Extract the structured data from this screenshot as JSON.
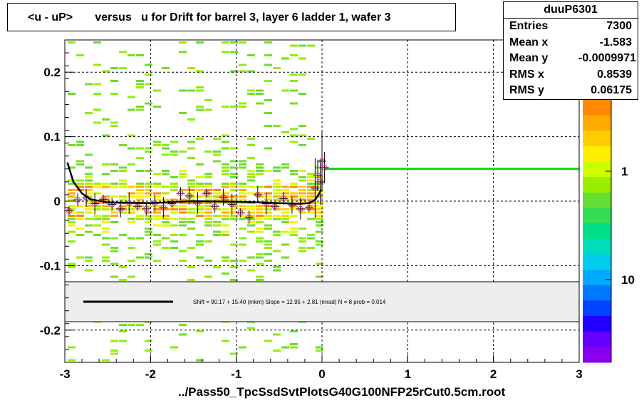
{
  "title": "<u - uP>       versus   u for Drift for barrel 3, layer 6 ladder 1, wafer 3",
  "stats": {
    "name": "duuP6301",
    "rows": [
      {
        "label": "Entries",
        "value": "7300"
      },
      {
        "label": "Mean x",
        "value": "-1.583"
      },
      {
        "label": "Mean y",
        "value": "-0.0009971"
      },
      {
        "label": "RMS x",
        "value": "0.8539"
      },
      {
        "label": "RMS y",
        "value": "0.06175"
      }
    ]
  },
  "xlabel": "../Pass50_TpcSsdSvtPlotsG40G100NFP25rCut0.5cm.root",
  "fit_text": "Shift =    90.17 + 15.40 (mkm) Slope =    12.95 + 2.81 (mrad)  N = 8 prob = 0.014",
  "colors": {
    "fit_curve": "#000000",
    "right_line": "#00dd00",
    "points": "#cc3399",
    "palette": [
      "#ff8800",
      "#ffaa00",
      "#ffcc00",
      "#ffee00",
      "#ccff00",
      "#99ee00",
      "#66dd33",
      "#33dd55",
      "#00dd88",
      "#00ddbb",
      "#00ccee",
      "#00aaff",
      "#0077ff",
      "#0044ff",
      "#2200ff",
      "#6600ff",
      "#8800ee"
    ]
  },
  "chart_data": {
    "type": "heatmap",
    "xlim": [
      -3,
      3
    ],
    "ylim": [
      -0.25,
      0.25
    ],
    "x_ticks": [
      "-3",
      "-2",
      "-1",
      "0",
      "1",
      "2",
      "3"
    ],
    "y_ticks": [
      "0.2",
      "0.1",
      "0",
      "-0.1",
      "-0.2"
    ],
    "z_ticks": [
      "1",
      "10"
    ],
    "grid": true,
    "stats_placement": "top-right",
    "profile_points": [
      {
        "x": -2.95,
        "y": -0.015
      },
      {
        "x": -2.85,
        "y": 0.002
      },
      {
        "x": -2.75,
        "y": 0.005
      },
      {
        "x": -2.65,
        "y": -0.004
      },
      {
        "x": -2.55,
        "y": 0.003
      },
      {
        "x": -2.45,
        "y": -0.005
      },
      {
        "x": -2.35,
        "y": -0.012
      },
      {
        "x": -2.25,
        "y": -0.003
      },
      {
        "x": -2.15,
        "y": -0.008
      },
      {
        "x": -2.05,
        "y": -0.012
      },
      {
        "x": -1.95,
        "y": -0.003
      },
      {
        "x": -1.85,
        "y": -0.01
      },
      {
        "x": -1.75,
        "y": -0.004
      },
      {
        "x": -1.65,
        "y": 0.012
      },
      {
        "x": -1.55,
        "y": 0.008
      },
      {
        "x": -1.45,
        "y": -0.003
      },
      {
        "x": -1.35,
        "y": 0.012
      },
      {
        "x": -1.25,
        "y": -0.008
      },
      {
        "x": -1.15,
        "y": 0.006
      },
      {
        "x": -1.05,
        "y": -0.005
      },
      {
        "x": -0.95,
        "y": -0.018
      },
      {
        "x": -0.85,
        "y": -0.025
      },
      {
        "x": -0.75,
        "y": 0.01
      },
      {
        "x": -0.65,
        "y": -0.004
      },
      {
        "x": -0.55,
        "y": -0.008
      },
      {
        "x": -0.45,
        "y": 0.004
      },
      {
        "x": -0.35,
        "y": -0.006
      },
      {
        "x": -0.25,
        "y": -0.012
      },
      {
        "x": -0.15,
        "y": -0.01
      },
      {
        "x": -0.08,
        "y": 0.02
      },
      {
        "x": -0.05,
        "y": 0.04
      },
      {
        "x": -0.02,
        "y": 0.03
      },
      {
        "x": 0.0,
        "y": 0.062
      },
      {
        "x": 0.03,
        "y": 0.052
      }
    ],
    "fit_curve": [
      {
        "x": -2.97,
        "y": 0.06
      },
      {
        "x": -2.9,
        "y": 0.03
      },
      {
        "x": -2.8,
        "y": 0.012
      },
      {
        "x": -2.7,
        "y": 0.003
      },
      {
        "x": -2.5,
        "y": -0.002
      },
      {
        "x": -2.0,
        "y": -0.003
      },
      {
        "x": -1.5,
        "y": 0.0
      },
      {
        "x": -1.0,
        "y": -0.001
      },
      {
        "x": -0.5,
        "y": -0.003
      },
      {
        "x": -0.25,
        "y": -0.004
      },
      {
        "x": -0.15,
        "y": -0.003
      },
      {
        "x": -0.08,
        "y": 0.002
      },
      {
        "x": -0.04,
        "y": 0.01
      },
      {
        "x": -0.01,
        "y": 0.018
      }
    ],
    "flat_line": {
      "x_from": 0.03,
      "x_to": 3.0,
      "y": 0.05
    }
  }
}
